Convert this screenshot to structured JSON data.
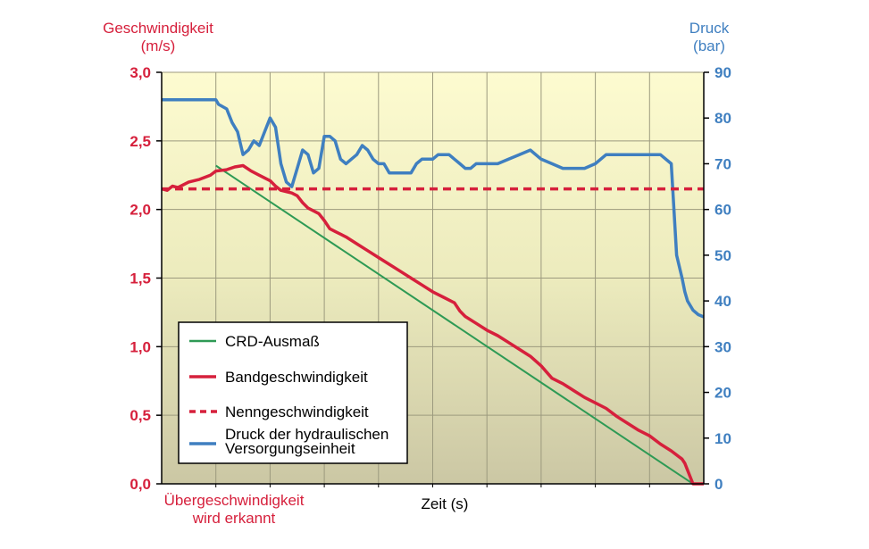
{
  "chart_data": {
    "type": "line",
    "left_axis": {
      "title_line1": "Geschwindigkeit",
      "title_line2": "(m/s)",
      "range": [
        0,
        3
      ],
      "ticks": [
        "0,0",
        "0,5",
        "1,0",
        "1,5",
        "2,0",
        "2,5",
        "3,0"
      ],
      "color": "#d6203c"
    },
    "right_axis": {
      "title_line1": "Druck",
      "title_line2": "(bar)",
      "range": [
        0,
        90
      ],
      "ticks": [
        "0",
        "10",
        "20",
        "30",
        "40",
        "50",
        "60",
        "70",
        "80",
        "90"
      ],
      "color": "#3f7fc0"
    },
    "xlabel": "Zeit (s)",
    "x_range": [
      0,
      100
    ],
    "annotation_line1": "Übergeschwindigkeit",
    "annotation_line2": "wird erkannt",
    "grid": true,
    "legend_position": "bottom-left",
    "series": [
      {
        "name": "CRD-Ausmaß",
        "axis": "left",
        "color": "#2e9a55",
        "style": "solid",
        "x": [
          10,
          98
        ],
        "y": [
          2.32,
          0.0
        ]
      },
      {
        "name": "Bandgeschwindigkeit",
        "axis": "left",
        "color": "#d6203c",
        "style": "solid",
        "x": [
          0,
          1,
          2,
          3,
          5,
          7,
          9,
          10,
          12,
          13.5,
          15,
          16.5,
          18,
          20,
          21,
          22,
          24,
          25,
          26,
          27,
          28,
          29,
          30,
          31,
          32,
          33,
          34,
          36,
          38,
          40,
          42,
          44,
          46,
          48,
          50,
          52,
          54,
          55,
          56,
          58,
          60,
          62,
          64,
          66,
          68,
          70,
          72,
          74,
          76,
          78,
          80,
          82,
          84,
          86,
          88,
          90,
          92,
          94,
          96,
          96.5,
          97,
          98,
          100
        ],
        "y": [
          2.15,
          2.14,
          2.17,
          2.16,
          2.2,
          2.22,
          2.25,
          2.28,
          2.29,
          2.31,
          2.32,
          2.28,
          2.25,
          2.21,
          2.17,
          2.14,
          2.12,
          2.1,
          2.05,
          2.01,
          1.99,
          1.97,
          1.92,
          1.86,
          1.84,
          1.82,
          1.8,
          1.75,
          1.7,
          1.65,
          1.6,
          1.55,
          1.5,
          1.45,
          1.4,
          1.36,
          1.32,
          1.26,
          1.22,
          1.17,
          1.12,
          1.08,
          1.03,
          0.98,
          0.93,
          0.86,
          0.77,
          0.73,
          0.68,
          0.63,
          0.59,
          0.55,
          0.49,
          0.44,
          0.39,
          0.35,
          0.29,
          0.24,
          0.18,
          0.15,
          0.1,
          0.0,
          0.0
        ]
      },
      {
        "name": "Nenngeschwindigkeit",
        "axis": "left",
        "color": "#d6203c",
        "style": "dashed",
        "x": [
          0,
          100
        ],
        "y": [
          2.15,
          2.15
        ]
      },
      {
        "name": "Druck der hydraulischen Versorgungseinheit",
        "axis": "right",
        "color": "#3f7fc0",
        "style": "solid",
        "x": [
          0,
          5,
          10,
          10.5,
          12,
          13,
          14,
          15,
          16,
          17,
          18,
          19,
          20,
          21,
          22,
          23,
          24,
          25,
          26,
          27,
          28,
          29,
          30,
          31,
          32,
          33,
          34,
          35,
          36,
          37,
          38,
          39,
          40,
          41,
          42,
          43,
          44,
          45,
          46,
          47,
          48,
          49,
          50,
          51,
          52,
          53,
          54,
          55,
          56,
          57,
          58,
          59,
          60,
          62,
          64,
          66,
          68,
          70,
          72,
          74,
          76,
          78,
          80,
          82,
          84,
          86,
          88,
          90,
          92,
          94,
          95,
          96,
          96.5,
          97,
          98,
          99,
          100
        ],
        "y": [
          84,
          84,
          84,
          83,
          82,
          79,
          77,
          72,
          73,
          75,
          74,
          77,
          80,
          78,
          70,
          66,
          65,
          69,
          73,
          72,
          68,
          69,
          76,
          76,
          75,
          71,
          70,
          71,
          72,
          74,
          73,
          71,
          70,
          70,
          68,
          68,
          68,
          68,
          68,
          70,
          71,
          71,
          71,
          72,
          72,
          72,
          71,
          70,
          69,
          69,
          70,
          70,
          70,
          70,
          71,
          72,
          73,
          71,
          70,
          69,
          69,
          69,
          70,
          72,
          72,
          72,
          72,
          72,
          72,
          70,
          50,
          45,
          42,
          40,
          38,
          37,
          36.5
        ]
      }
    ]
  }
}
